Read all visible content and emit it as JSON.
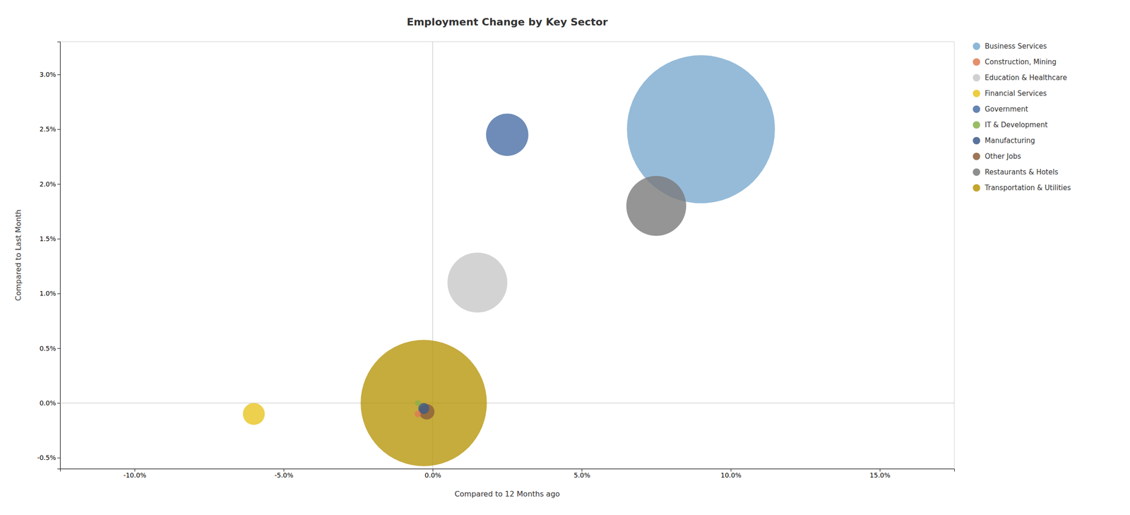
{
  "chart_data": {
    "type": "bubble",
    "title": "Employment Change by Key Sector",
    "x_label": "Compared to 12 Months ago",
    "y_label": "Compared to Last Month",
    "xlim": [
      -0.125,
      0.175
    ],
    "ylim": [
      -0.006,
      0.033
    ],
    "xticks": [
      {
        "value": -0.1,
        "label": "-10.0%"
      },
      {
        "value": -0.05,
        "label": "-5.0%"
      },
      {
        "value": 0,
        "label": "0.0%"
      },
      {
        "value": 0.05,
        "label": "5.0%"
      },
      {
        "value": 0.1,
        "label": "10.0%"
      },
      {
        "value": 0.15,
        "label": "15.0%"
      }
    ],
    "yticks": [
      {
        "value": -0.005,
        "label": "-0.5%"
      },
      {
        "value": 0,
        "label": "0.0%"
      },
      {
        "value": 0.005,
        "label": "0.5%"
      },
      {
        "value": 0.01,
        "label": "1.0%"
      },
      {
        "value": 0.015,
        "label": "1.5%"
      },
      {
        "value": 0.02,
        "label": "2.0%"
      },
      {
        "value": 0.025,
        "label": "2.5%"
      },
      {
        "value": 0.03,
        "label": "3.0%"
      }
    ],
    "grid": false,
    "legend": "right",
    "series": [
      {
        "name": "Business Services",
        "color": "#7aaad0",
        "x": [
          0.09
        ],
        "values": [
          0.025
        ],
        "size": [
          55000
        ]
      },
      {
        "name": "Construction, Mining",
        "color": "#e07b54",
        "x": [
          -0.005
        ],
        "values": [
          -0.001
        ],
        "size": [
          100
        ]
      },
      {
        "name": "Education & Healthcare",
        "color": "#c8c8c8",
        "x": [
          0.015
        ],
        "values": [
          0.011
        ],
        "size": [
          9000
        ]
      },
      {
        "name": "Financial Services",
        "color": "#e8c420",
        "x": [
          -0.06
        ],
        "values": [
          -0.001
        ],
        "size": [
          1200
        ]
      },
      {
        "name": "Government",
        "color": "#4a6fa5",
        "x": [
          0.025
        ],
        "values": [
          0.0245
        ],
        "size": [
          4500
        ]
      },
      {
        "name": "IT & Development",
        "color": "#88b04b",
        "x": [
          -0.005
        ],
        "values": [
          0.0
        ],
        "size": [
          80
        ]
      },
      {
        "name": "Manufacturing",
        "color": "#3d5a8a",
        "x": [
          -0.003
        ],
        "values": [
          -0.0005
        ],
        "size": [
          300
        ]
      },
      {
        "name": "Other Jobs",
        "color": "#8b5e3c",
        "x": [
          -0.002
        ],
        "values": [
          -0.0008
        ],
        "size": [
          600
        ]
      },
      {
        "name": "Restaurants & Hotels",
        "color": "#7a7a7a",
        "x": [
          0.075
        ],
        "values": [
          0.018
        ],
        "size": [
          9000
        ]
      },
      {
        "name": "Transportation & Utilities",
        "color": "#b8960c",
        "x": [
          -0.003
        ],
        "values": [
          0.0
        ],
        "size": [
          40000
        ]
      }
    ]
  }
}
